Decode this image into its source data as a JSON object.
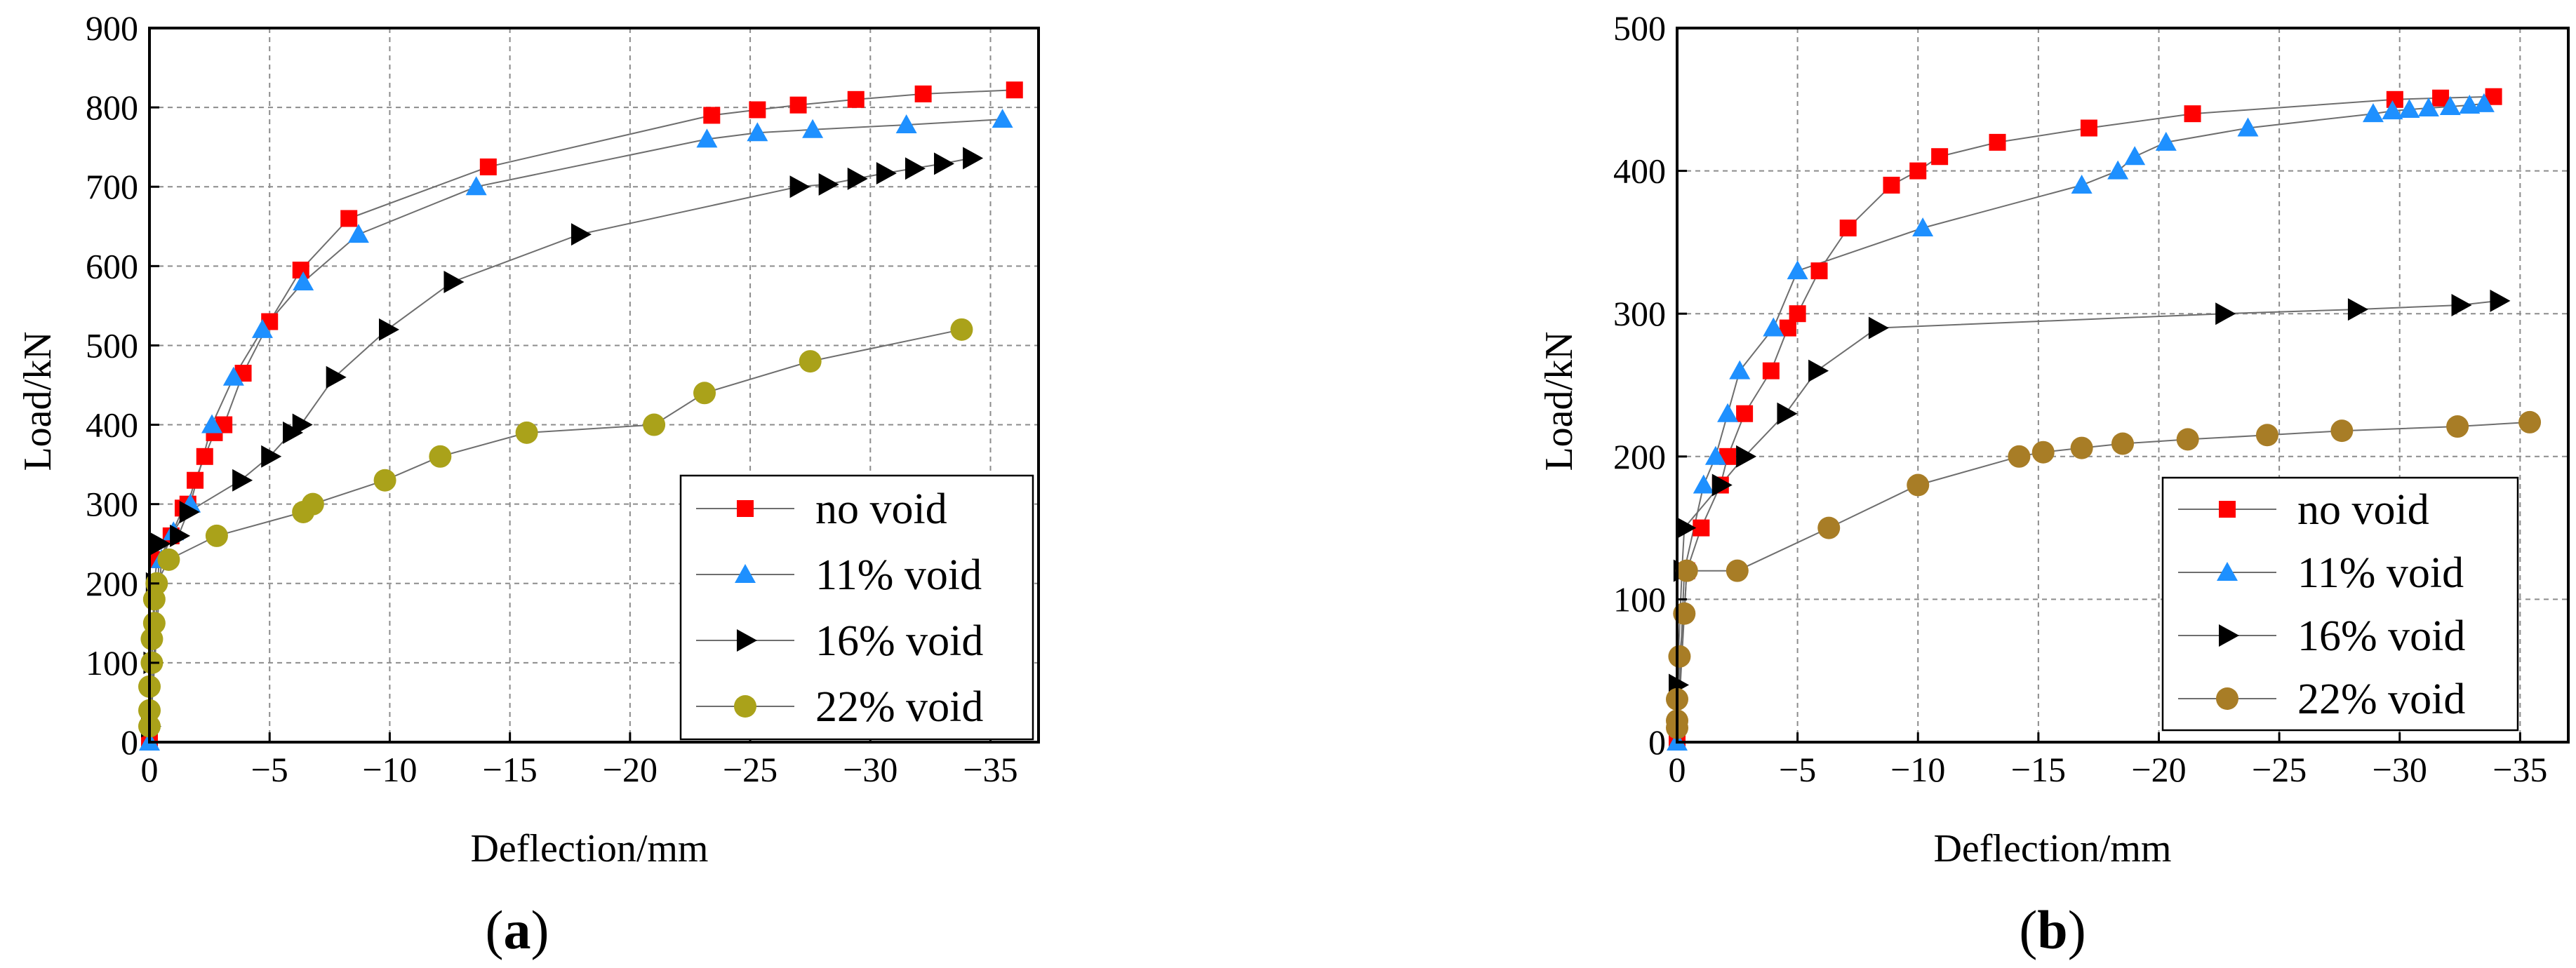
{
  "chart_data": [
    {
      "type": "scatter",
      "title": "",
      "caption_letter": "a",
      "xlabel": "Deflection/mm",
      "ylabel": "Load/kN",
      "xlim": [
        0,
        -37
      ],
      "ylim": [
        0,
        900
      ],
      "x_ticks": [
        0,
        -5,
        -10,
        -15,
        -20,
        -25,
        -30,
        -35
      ],
      "x_tick_labels": [
        "0",
        "−5",
        "−10",
        "−15",
        "−20",
        "−25",
        "−30",
        "−35"
      ],
      "y_ticks": [
        0,
        100,
        200,
        300,
        400,
        500,
        600,
        700,
        800,
        900
      ],
      "y_tick_labels": [
        "0",
        "100",
        "200",
        "300",
        "400",
        "500",
        "600",
        "700",
        "800",
        "900"
      ],
      "grid": true,
      "legend_position": "bottom-right",
      "series": [
        {
          "name": "no void",
          "marker": "square",
          "color": "#ff0000",
          "x": [
            0,
            -0.4,
            -0.9,
            -1.4,
            -1.6,
            -1.9,
            -2.3,
            -2.7,
            -3.1,
            -3.9,
            -5.0,
            -6.3,
            -8.3,
            -14.1,
            -23.4,
            -25.3,
            -27.0,
            -29.4,
            -32.2,
            -36.0
          ],
          "y": [
            0,
            230,
            260,
            295,
            300,
            330,
            360,
            390,
            400,
            465,
            530,
            595,
            660,
            725,
            790,
            797,
            803,
            810,
            817,
            822
          ]
        },
        {
          "name": "11% void",
          "marker": "triangle",
          "color": "#1e90ff",
          "x": [
            0,
            -0.5,
            -1.0,
            -1.7,
            -2.6,
            -3.5,
            -4.7,
            -6.4,
            -8.7,
            -13.6,
            -23.2,
            -25.3,
            -27.6,
            -31.5,
            -35.5
          ],
          "y": [
            0,
            230,
            265,
            300,
            400,
            460,
            520,
            580,
            640,
            700,
            760,
            768,
            772,
            778,
            785
          ]
        },
        {
          "name": "16% void",
          "marker": "triangle-right",
          "color": "#000000",
          "x": [
            0,
            -0.1,
            -0.2,
            -0.4,
            -1.2,
            -1.6,
            -3.8,
            -5.0,
            -5.9,
            -6.3,
            -7.7,
            -9.9,
            -12.6,
            -17.9,
            -27.0,
            -28.2,
            -29.4,
            -30.6,
            -31.8,
            -33.0,
            -34.2
          ],
          "y": [
            20,
            100,
            200,
            250,
            260,
            290,
            330,
            360,
            390,
            400,
            460,
            520,
            580,
            640,
            700,
            703,
            710,
            717,
            723,
            729,
            736
          ]
        },
        {
          "name": "22% void",
          "marker": "circle",
          "color": "#aaa21a",
          "x": [
            0,
            0,
            0,
            -0.1,
            -0.1,
            -0.2,
            -0.2,
            -0.3,
            -0.8,
            -2.8,
            -6.4,
            -6.8,
            -9.8,
            -12.1,
            -15.7,
            -21.0,
            -23.1,
            -27.5,
            -33.8
          ],
          "y": [
            20,
            40,
            70,
            100,
            130,
            150,
            180,
            200,
            230,
            260,
            290,
            300,
            330,
            360,
            390,
            400,
            440,
            480,
            520
          ]
        }
      ]
    },
    {
      "type": "scatter",
      "title": "",
      "caption_letter": "b",
      "xlabel": "Deflection/mm",
      "ylabel": "Load/kN",
      "xlim": [
        0,
        -37
      ],
      "ylim": [
        0,
        500
      ],
      "x_ticks": [
        0,
        -5,
        -10,
        -15,
        -20,
        -25,
        -30,
        -35
      ],
      "x_tick_labels": [
        "0",
        "−5",
        "−10",
        "−15",
        "−20",
        "−25",
        "−30",
        "−35"
      ],
      "y_ticks": [
        0,
        100,
        200,
        300,
        400,
        500
      ],
      "y_tick_labels": [
        "0",
        "100",
        "200",
        "300",
        "400",
        "500"
      ],
      "grid": true,
      "legend_position": "bottom-right",
      "series": [
        {
          "name": "no void",
          "marker": "square",
          "color": "#ff0000",
          "x": [
            0,
            -0.4,
            -1.0,
            -1.8,
            -2.1,
            -2.8,
            -3.9,
            -4.6,
            -5.0,
            -5.9,
            -7.1,
            -8.9,
            -10.0,
            -10.9,
            -13.3,
            -17.1,
            -21.4,
            -29.8,
            -31.7,
            -33.9
          ],
          "y": [
            0,
            120,
            150,
            180,
            200,
            230,
            260,
            290,
            300,
            330,
            360,
            390,
            400,
            410,
            420,
            430,
            440,
            450,
            451,
            452
          ]
        },
        {
          "name": "11% void",
          "marker": "triangle",
          "color": "#1e90ff",
          "x": [
            0,
            -0.3,
            -1.1,
            -1.6,
            -2.1,
            -2.6,
            -4.0,
            -5.0,
            -10.2,
            -16.8,
            -18.3,
            -19.0,
            -20.3,
            -23.7,
            -28.9,
            -29.7,
            -30.4,
            -31.2,
            -32.1,
            -32.9,
            -33.5
          ],
          "y": [
            0,
            120,
            180,
            200,
            230,
            260,
            290,
            330,
            360,
            390,
            400,
            410,
            420,
            430,
            440,
            442,
            443,
            444,
            445,
            446,
            447
          ]
        },
        {
          "name": "16% void",
          "marker": "triangle-right",
          "color": "#000000",
          "x": [
            0,
            -0.2,
            -0.3,
            -1.8,
            -2.8,
            -4.5,
            -5.8,
            -8.3,
            -22.7,
            -28.2,
            -32.5,
            -34.1
          ],
          "y": [
            40,
            120,
            150,
            180,
            200,
            230,
            260,
            290,
            300,
            303,
            306,
            309
          ]
        },
        {
          "name": "22% void",
          "marker": "circle",
          "color": "#a87d26",
          "x": [
            0,
            0,
            0,
            -0.1,
            -0.3,
            -0.4,
            -2.5,
            -6.3,
            -10.0,
            -14.2,
            -15.2,
            -16.8,
            -18.5,
            -21.2,
            -24.5,
            -27.6,
            -32.4,
            -35.4
          ],
          "y": [
            10,
            15,
            30,
            60,
            90,
            120,
            120,
            150,
            180,
            200,
            203,
            206,
            209,
            212,
            215,
            218,
            221,
            224
          ]
        }
      ]
    }
  ]
}
